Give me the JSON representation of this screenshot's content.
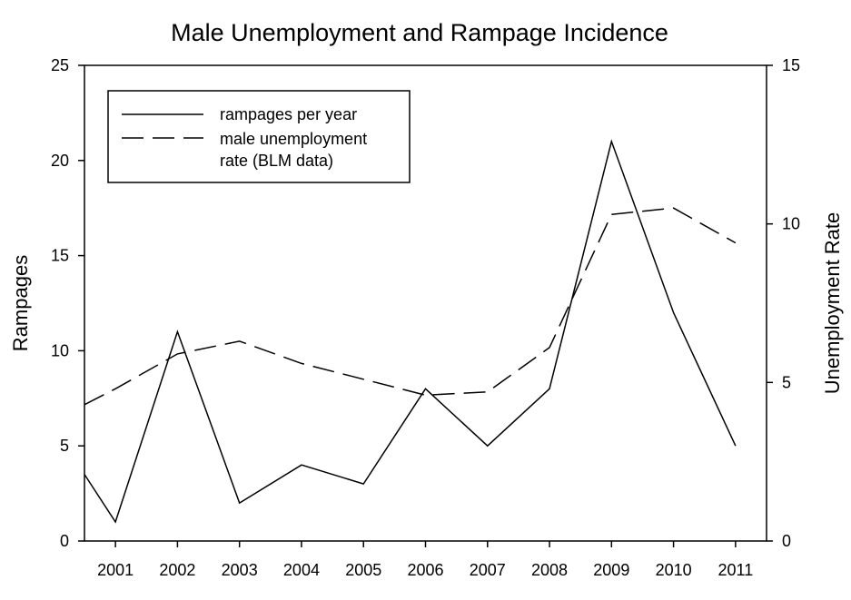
{
  "chart_data": {
    "type": "line",
    "title": "Male Unemployment and Rampage Incidence",
    "xlabel": "",
    "ylabel": "Rampages",
    "y2label": "Unemployment Rate",
    "x": [
      2000.5,
      2001,
      2002,
      2003,
      2004,
      2005,
      2006,
      2007,
      2008,
      2009,
      2010,
      2011
    ],
    "x_tick_labels": [
      "2001",
      "2002",
      "2003",
      "2004",
      "2005",
      "2006",
      "2007",
      "2008",
      "2009",
      "2010",
      "2011"
    ],
    "x_ticks": [
      2001,
      2002,
      2003,
      2004,
      2005,
      2006,
      2007,
      2008,
      2009,
      2010,
      2011
    ],
    "xlim": [
      2000.5,
      2011.5
    ],
    "ylim": [
      0,
      25
    ],
    "y_ticks": [
      0,
      5,
      10,
      15,
      20,
      25
    ],
    "y2lim": [
      0,
      15
    ],
    "y2_ticks": [
      0,
      5,
      10,
      15
    ],
    "legend_position": "top-left",
    "series": [
      {
        "name": "rampages per year",
        "axis": "left",
        "style": "solid",
        "x": [
          2000.5,
          2001,
          2002,
          2003,
          2004,
          2005,
          2006,
          2007,
          2008,
          2009,
          2010,
          2011
        ],
        "values": [
          3.5,
          1,
          11,
          2,
          4,
          3,
          8,
          5,
          8,
          21,
          12,
          5
        ]
      },
      {
        "name": "male unemployment rate (BLM data)",
        "axis": "right",
        "style": "dashed",
        "x": [
          2000.5,
          2001,
          2002,
          2003,
          2004,
          2005,
          2006,
          2007,
          2008,
          2009,
          2010,
          2011
        ],
        "values": [
          4.3,
          4.8,
          5.9,
          6.3,
          5.6,
          5.1,
          4.6,
          4.7,
          6.1,
          10.3,
          10.5,
          9.4
        ]
      }
    ],
    "legend": {
      "entries": [
        {
          "lines": [
            "rampages per year"
          ],
          "style": "solid"
        },
        {
          "lines": [
            "male unemployment",
            "rate (BLM data)"
          ],
          "style": "dashed"
        }
      ]
    },
    "colors": {
      "line": "#000000",
      "background": "#ffffff"
    }
  }
}
